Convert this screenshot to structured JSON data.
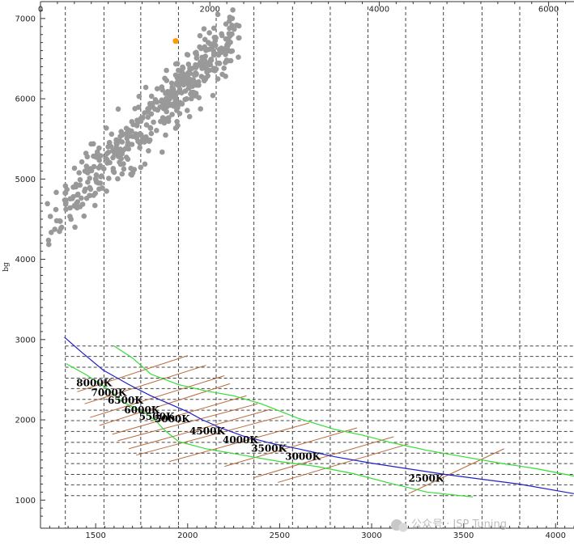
{
  "chart_data": {
    "type": "scatter",
    "title": "",
    "ylabel": "bg",
    "xlabel": "",
    "xlim": [
      1200,
      4100
    ],
    "ylim": [
      650,
      7150
    ],
    "top_axis_lim": [
      0,
      6300
    ],
    "bottom_ticks": [
      1500,
      2000,
      2500,
      3000,
      3500,
      4000
    ],
    "top_ticks": [
      0,
      2000,
      4000,
      6000
    ],
    "left_ticks": [
      1000,
      2000,
      3000,
      4000,
      5000,
      6000,
      7000
    ],
    "grid": "dashed",
    "vertical_grid_x": [
      1335,
      1545,
      1745,
      1950,
      2155,
      2360,
      2570,
      2775,
      2980,
      3185,
      3390,
      3600,
      3805,
      4010
    ],
    "horizontal_grid_y": [
      1055,
      1190,
      1320,
      1455,
      1585,
      1720,
      1855,
      1990,
      2120,
      2255,
      2390,
      2520,
      2655,
      2790,
      2920
    ],
    "cct_curves": {
      "center": {
        "color": "#2020c8",
        "points": [
          [
            1330,
            3030
          ],
          [
            1420,
            2850
          ],
          [
            1540,
            2620
          ],
          [
            1680,
            2440
          ],
          [
            1800,
            2300
          ],
          [
            1900,
            2200
          ],
          [
            2000,
            2100
          ],
          [
            2080,
            2000
          ],
          [
            2180,
            1900
          ],
          [
            2300,
            1800
          ],
          [
            2450,
            1710
          ],
          [
            2600,
            1640
          ],
          [
            2800,
            1540
          ],
          [
            3000,
            1460
          ],
          [
            3200,
            1390
          ],
          [
            3400,
            1320
          ],
          [
            3600,
            1260
          ],
          [
            3800,
            1200
          ],
          [
            4100,
            1080
          ]
        ]
      },
      "upper": {
        "color": "#33dd33",
        "points": [
          [
            1600,
            2920
          ],
          [
            1700,
            2770
          ],
          [
            1800,
            2570
          ],
          [
            1950,
            2440
          ],
          [
            2100,
            2360
          ],
          [
            2250,
            2300
          ],
          [
            2400,
            2200
          ],
          [
            2600,
            2020
          ],
          [
            2800,
            1880
          ],
          [
            2950,
            1810
          ],
          [
            3100,
            1720
          ],
          [
            3300,
            1620
          ],
          [
            3500,
            1540
          ],
          [
            3700,
            1460
          ],
          [
            3900,
            1390
          ],
          [
            4100,
            1300
          ]
        ]
      },
      "lower": {
        "color": "#33dd33",
        "points": [
          [
            1340,
            2700
          ],
          [
            1450,
            2560
          ],
          [
            1550,
            2410
          ],
          [
            1650,
            2220
          ],
          [
            1780,
            2070
          ],
          [
            1830,
            1980
          ],
          [
            1870,
            1880
          ],
          [
            1950,
            1730
          ],
          [
            2100,
            1640
          ],
          [
            2300,
            1560
          ],
          [
            2500,
            1480
          ],
          [
            2700,
            1420
          ],
          [
            2900,
            1330
          ],
          [
            3100,
            1210
          ],
          [
            3300,
            1100
          ],
          [
            3550,
            1040
          ]
        ]
      }
    },
    "isotherms": {
      "color": "#b86a3c",
      "segments": [
        [
          [
            1400,
            2350
          ],
          [
            2000,
            2800
          ]
        ],
        [
          [
            1440,
            2200
          ],
          [
            2100,
            2680
          ]
        ],
        [
          [
            1470,
            2030
          ],
          [
            2200,
            2550
          ]
        ],
        [
          [
            1520,
            1930
          ],
          [
            2230,
            2450
          ]
        ],
        [
          [
            1590,
            1820
          ],
          [
            2320,
            2300
          ]
        ],
        [
          [
            1620,
            1740
          ],
          [
            2380,
            2200
          ]
        ],
        [
          [
            1680,
            1640
          ],
          [
            2450,
            2130
          ]
        ],
        [
          [
            1720,
            1560
          ],
          [
            2520,
            2050
          ]
        ],
        [
          [
            1900,
            1480
          ],
          [
            2660,
            1960
          ]
        ],
        [
          [
            2200,
            1420
          ],
          [
            2920,
            1900
          ]
        ],
        [
          [
            2360,
            1280
          ],
          [
            3120,
            1790
          ]
        ],
        [
          [
            2490,
            1220
          ],
          [
            3200,
            1700
          ]
        ],
        [
          [
            3200,
            1080
          ],
          [
            3720,
            1640
          ]
        ]
      ]
    },
    "cct_labels": [
      {
        "text": "8000K",
        "x": 1395,
        "y": 2420
      },
      {
        "text": "7000K",
        "x": 1475,
        "y": 2300
      },
      {
        "text": "6500K",
        "x": 1565,
        "y": 2200
      },
      {
        "text": "6000K",
        "x": 1655,
        "y": 2080
      },
      {
        "text": "5500K",
        "x": 1735,
        "y": 2000
      },
      {
        "text": "5000K",
        "x": 1820,
        "y": 1970
      },
      {
        "text": "4500K",
        "x": 2010,
        "y": 1820
      },
      {
        "text": "4000K",
        "x": 2190,
        "y": 1710
      },
      {
        "text": "3500K",
        "x": 2345,
        "y": 1600
      },
      {
        "text": "3000K",
        "x": 2530,
        "y": 1500
      },
      {
        "text": "2500K",
        "x": 3200,
        "y": 1230
      }
    ],
    "highlight_point": {
      "x": 1935,
      "y": 6720,
      "color": "#ff9900"
    },
    "point_color": "#999999",
    "watermark": "公众号 · ISP Tuning"
  }
}
